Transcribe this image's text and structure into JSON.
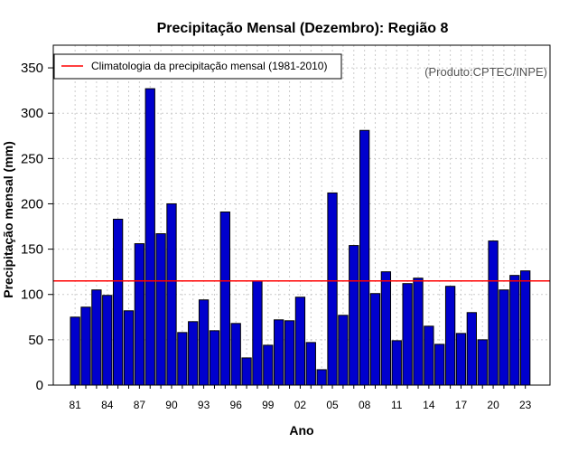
{
  "chart_data": {
    "type": "bar",
    "title": "Precipitação Mensal (Dezembro): Região 8",
    "xlabel": "Ano",
    "ylabel": "Precipitação mensal (mm)",
    "source_note": "(Produto:CPTEC/INPE)",
    "ylim": [
      0,
      375
    ],
    "yticks": [
      0,
      50,
      100,
      150,
      200,
      250,
      300,
      350
    ],
    "xtick_labels": [
      "81",
      "84",
      "87",
      "90",
      "93",
      "96",
      "99",
      "02",
      "05",
      "08",
      "11",
      "14",
      "17",
      "20",
      "23"
    ],
    "grid": true,
    "legend_position": "top-left",
    "colors": {
      "bar": "#0000cd",
      "bar_edge": "#000000",
      "climatology": "#ff0000",
      "grid": "#cccccc"
    },
    "categories": [
      "1981",
      "1982",
      "1983",
      "1984",
      "1985",
      "1986",
      "1987",
      "1988",
      "1989",
      "1990",
      "1991",
      "1992",
      "1993",
      "1994",
      "1995",
      "1996",
      "1997",
      "1998",
      "1999",
      "2000",
      "2001",
      "2002",
      "2003",
      "2004",
      "2005",
      "2006",
      "2007",
      "2008",
      "2009",
      "2010",
      "2011",
      "2012",
      "2013",
      "2014",
      "2015",
      "2016",
      "2017",
      "2018",
      "2019",
      "2020",
      "2021",
      "2022",
      "2023"
    ],
    "series": [
      {
        "name": "Precipitação mensal",
        "values": [
          75,
          86,
          105,
          99,
          183,
          82,
          156,
          327,
          167,
          200,
          58,
          70,
          94,
          60,
          191,
          68,
          30,
          115,
          44,
          72,
          71,
          97,
          47,
          17,
          212,
          77,
          154,
          281,
          101,
          125,
          49,
          112,
          118,
          65,
          45,
          109,
          57,
          80,
          50,
          159,
          105,
          121,
          126
        ]
      }
    ],
    "climatology": {
      "label": "Climatologia da precipitação mensal (1981-2010)",
      "value": 115
    }
  }
}
